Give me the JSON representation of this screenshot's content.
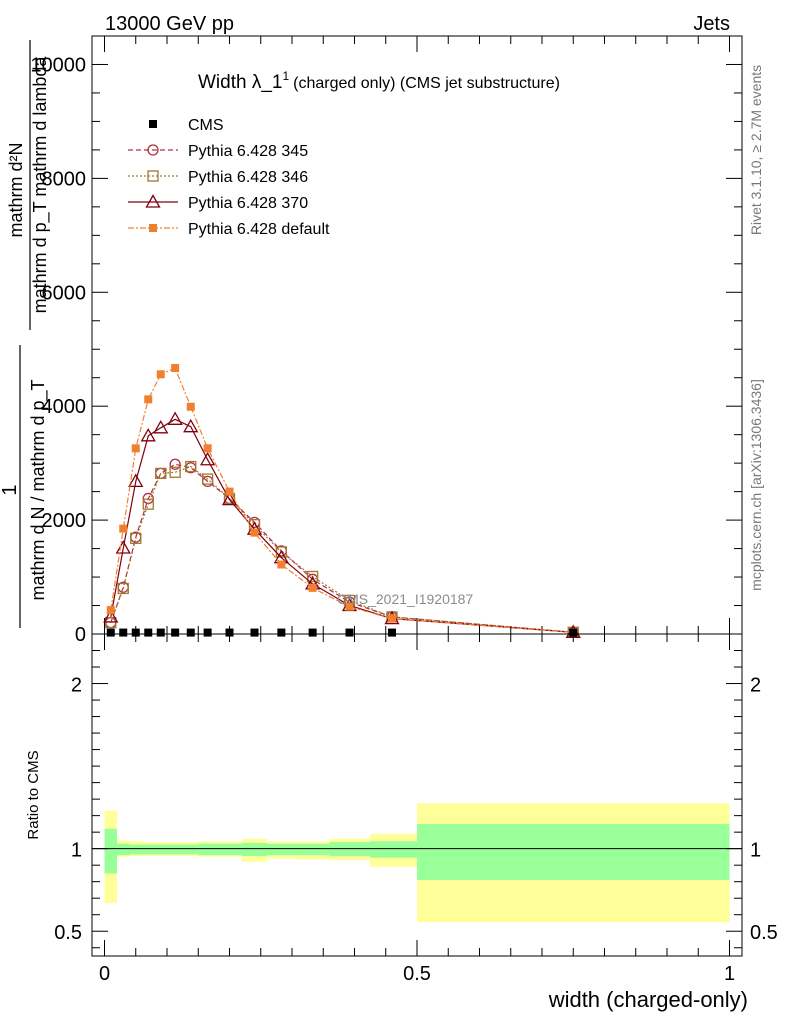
{
  "header": {
    "energy": "13000 GeV pp",
    "category": "Jets",
    "rivet_info": "Rivet 3.1.10, ≥ 2.7M events",
    "mcplots_info": "mcplots.cern.ch [arXiv:1306.3436]",
    "analysis_id": "CMS_2021_I1920187"
  },
  "chart_data": [
    {
      "type": "line",
      "title_main": "Width λ_1",
      "title_sup": "1",
      "title_rest": "(charged only) (CMS jet substructure)",
      "ylabel_top": "1",
      "ylabel_frac_num": "mathrm d²N",
      "ylabel_frac_den": "mathrm d p_T mathrm d lambda",
      "ylabel_rest": "mathrm d N / mathrm d p_T",
      "xlim": [
        -0.02,
        1.02
      ],
      "ylim": [
        0,
        10500
      ],
      "yticks": [
        0,
        2000,
        4000,
        6000,
        8000,
        10000
      ],
      "ytick_labels": [
        "0",
        "2000",
        "4000",
        "6000",
        "8000",
        "10000"
      ],
      "legend_position": "top-left",
      "x": [
        0.01,
        0.03,
        0.05,
        0.07,
        0.09,
        0.113,
        0.138,
        0.165,
        0.2,
        0.24,
        0.283,
        0.333,
        0.392,
        0.46,
        0.75
      ],
      "series": [
        {
          "name": "CMS",
          "color": "#000000",
          "marker": "filled-square",
          "values": [
            25,
            25,
            25,
            25,
            25,
            25,
            25,
            25,
            25,
            25,
            25,
            25,
            25,
            25,
            25
          ]
        },
        {
          "name": "Pythia 6.428 345",
          "color": "#b03040",
          "marker": "open-circle",
          "dash": "5,3",
          "values": [
            200,
            820,
            1700,
            2380,
            2820,
            2980,
            2920,
            2680,
            2380,
            1960,
            1460,
            960,
            560,
            300,
            30
          ]
        },
        {
          "name": "Pythia 6.428 346",
          "color": "#a07830",
          "marker": "open-square",
          "dash": "2,2",
          "values": [
            200,
            800,
            1680,
            2280,
            2820,
            2840,
            2940,
            2720,
            2380,
            1920,
            1440,
            1010,
            590,
            300,
            30
          ]
        },
        {
          "name": "Pythia 6.428 370",
          "color": "#800010",
          "marker": "open-triangle",
          "dash": "",
          "values": [
            300,
            1510,
            2680,
            3480,
            3620,
            3770,
            3640,
            3060,
            2360,
            1840,
            1340,
            880,
            500,
            270,
            30
          ]
        },
        {
          "name": "Pythia 6.428 default",
          "color": "#f08030",
          "marker": "filled-square",
          "dash": "6,2,2,2",
          "values": [
            420,
            1850,
            3260,
            4120,
            4560,
            4670,
            3990,
            3260,
            2500,
            1780,
            1220,
            810,
            480,
            270,
            30
          ]
        }
      ]
    },
    {
      "type": "area",
      "ylabel": "Ratio to CMS",
      "xlabel": "width (charged-only)",
      "xlim": [
        -0.02,
        1.02
      ],
      "ylim": [
        0.35,
        2.3
      ],
      "xticks": [
        0,
        0.5,
        1
      ],
      "xtick_labels": [
        "0",
        "0.5",
        "1"
      ],
      "yticks": [
        0.5,
        1,
        2
      ],
      "ytick_labels": [
        "0.5",
        "1",
        "2"
      ],
      "bins": [
        {
          "lo": 0.0,
          "hi": 0.02,
          "band1": [
            0.85,
            1.12
          ],
          "band2": [
            0.67,
            1.23
          ]
        },
        {
          "lo": 0.02,
          "hi": 0.04,
          "band1": [
            0.96,
            1.03
          ],
          "band2": [
            0.95,
            1.05
          ]
        },
        {
          "lo": 0.04,
          "hi": 0.06,
          "band1": [
            0.965,
            1.025
          ],
          "band2": [
            0.955,
            1.045
          ]
        },
        {
          "lo": 0.06,
          "hi": 0.08,
          "band1": [
            0.965,
            1.025
          ],
          "band2": [
            0.955,
            1.04
          ]
        },
        {
          "lo": 0.08,
          "hi": 0.1,
          "band1": [
            0.965,
            1.025
          ],
          "band2": [
            0.955,
            1.04
          ]
        },
        {
          "lo": 0.1,
          "hi": 0.125,
          "band1": [
            0.965,
            1.025
          ],
          "band2": [
            0.955,
            1.04
          ]
        },
        {
          "lo": 0.125,
          "hi": 0.15,
          "band1": [
            0.965,
            1.025
          ],
          "band2": [
            0.955,
            1.04
          ]
        },
        {
          "lo": 0.15,
          "hi": 0.18,
          "band1": [
            0.96,
            1.03
          ],
          "band2": [
            0.95,
            1.045
          ]
        },
        {
          "lo": 0.18,
          "hi": 0.22,
          "band1": [
            0.96,
            1.03
          ],
          "band2": [
            0.95,
            1.045
          ]
        },
        {
          "lo": 0.22,
          "hi": 0.26,
          "band1": [
            0.955,
            1.035
          ],
          "band2": [
            0.92,
            1.06
          ]
        },
        {
          "lo": 0.26,
          "hi": 0.305,
          "band1": [
            0.96,
            1.03
          ],
          "band2": [
            0.94,
            1.045
          ]
        },
        {
          "lo": 0.305,
          "hi": 0.36,
          "band1": [
            0.96,
            1.03
          ],
          "band2": [
            0.935,
            1.045
          ]
        },
        {
          "lo": 0.36,
          "hi": 0.425,
          "band1": [
            0.955,
            1.04
          ],
          "band2": [
            0.93,
            1.06
          ]
        },
        {
          "lo": 0.425,
          "hi": 0.5,
          "band1": [
            0.945,
            1.045
          ],
          "band2": [
            0.89,
            1.09
          ]
        },
        {
          "lo": 0.5,
          "hi": 1.0,
          "band1": [
            0.81,
            1.15
          ],
          "band2": [
            0.555,
            1.275
          ]
        }
      ]
    }
  ]
}
